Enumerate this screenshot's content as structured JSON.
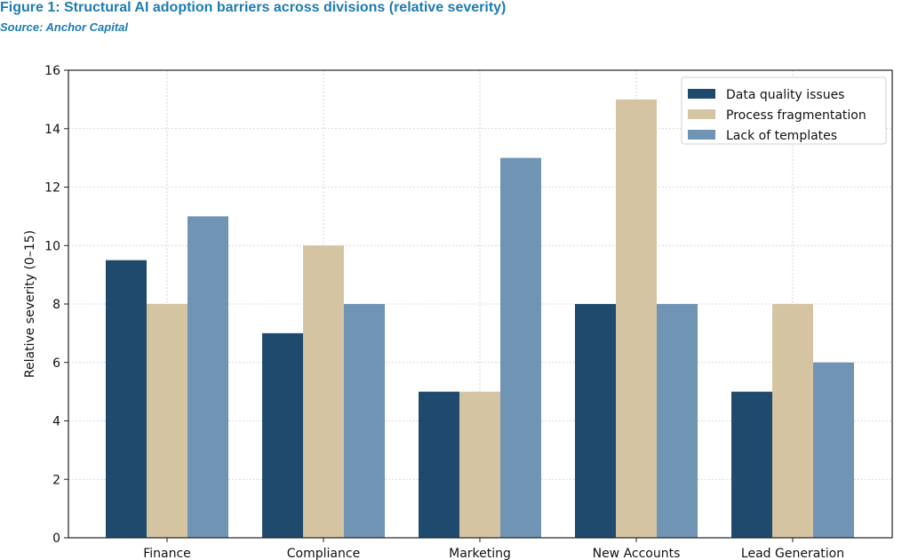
{
  "header": {
    "title": "Figure 1: Structural AI adoption barriers across divisions (relative severity)",
    "source": "Source: Anchor Capital"
  },
  "chart_data": {
    "type": "bar",
    "title": "Figure 1: Structural AI adoption barriers across divisions (relative severity)",
    "subtitle": "Source: Anchor Capital",
    "xlabel": "",
    "ylabel": "Relative severity (0–15)",
    "ylim": [
      0,
      16
    ],
    "yticks": [
      0,
      2,
      4,
      6,
      8,
      10,
      12,
      14,
      16
    ],
    "grid": true,
    "legend_position": "top-right",
    "categories": [
      "Finance",
      "Compliance",
      "Marketing",
      "New Accounts",
      "Lead Generation"
    ],
    "series": [
      {
        "name": "Data quality issues",
        "color": "#1f4a6e",
        "values": [
          9.5,
          7,
          5,
          8,
          5
        ]
      },
      {
        "name": "Process fragmentation",
        "color": "#d5c4a1",
        "values": [
          8,
          10,
          5,
          15,
          8
        ]
      },
      {
        "name": "Lack of templates",
        "color": "#7094b3",
        "values": [
          11,
          8,
          13,
          8,
          6
        ]
      }
    ]
  }
}
